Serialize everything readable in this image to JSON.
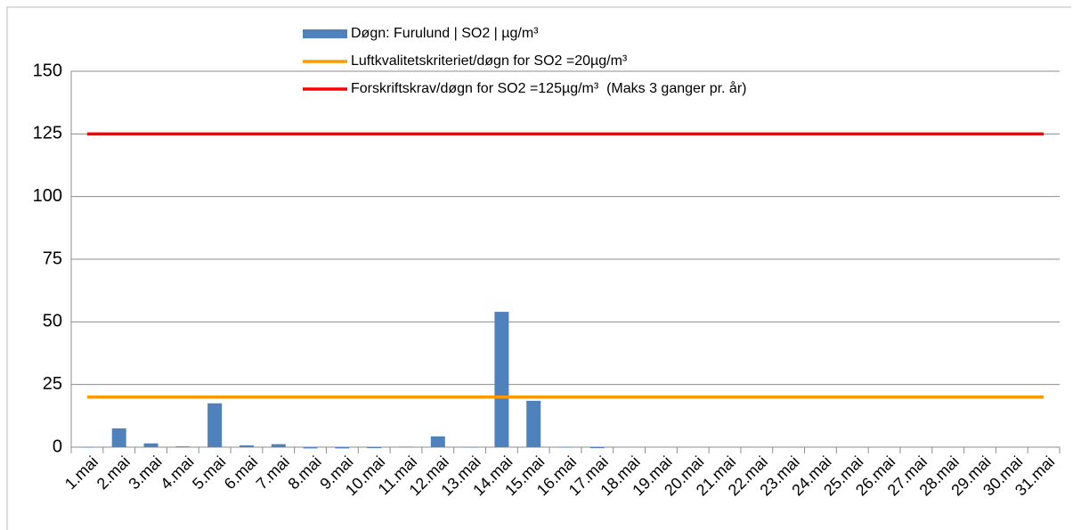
{
  "chart_data": {
    "type": "bar",
    "categories": [
      "1.mai",
      "2.mai",
      "3.mai",
      "4.mai",
      "5.mai",
      "6.mai",
      "7.mai",
      "8.mai",
      "9.mai",
      "10.mai",
      "11.mai",
      "12.mai",
      "13.mai",
      "14.mai",
      "15.mai",
      "16.mai",
      "17.mai",
      "18.mai",
      "19.mai",
      "20.mai",
      "21.mai",
      "22.mai",
      "23.mai",
      "24.mai",
      "25.mai",
      "26.mai",
      "27.mai",
      "28.mai",
      "29.mai",
      "30.mai",
      "31.mai"
    ],
    "series": [
      {
        "name": "Døgn: Furulund | SO2 | µg/m³",
        "type": "bar",
        "color": "#4f81bd",
        "values": [
          0,
          7.5,
          1.5,
          0.3,
          17.5,
          0.7,
          1.2,
          -0.5,
          -0.5,
          -0.4,
          0.2,
          4.3,
          0,
          54,
          18.5,
          0,
          -0.4,
          null,
          null,
          null,
          null,
          null,
          null,
          null,
          null,
          null,
          null,
          null,
          null,
          null,
          null
        ]
      },
      {
        "name": "Luftkvalitetskriteriet/døgn for SO2 =20µg/m³",
        "type": "line",
        "color": "#ff9900",
        "values": [
          20,
          20,
          20,
          20,
          20,
          20,
          20,
          20,
          20,
          20,
          20,
          20,
          20,
          20,
          20,
          20,
          20,
          20,
          20,
          20,
          20,
          20,
          20,
          20,
          20,
          20,
          20,
          20,
          20,
          20,
          20
        ]
      },
      {
        "name": "Forskriftskrav/døgn for SO2 =125µg/m³  (Maks 3 ganger pr. år)",
        "type": "line",
        "color": "#ff0000",
        "values": [
          125,
          125,
          125,
          125,
          125,
          125,
          125,
          125,
          125,
          125,
          125,
          125,
          125,
          125,
          125,
          125,
          125,
          125,
          125,
          125,
          125,
          125,
          125,
          125,
          125,
          125,
          125,
          125,
          125,
          125,
          125
        ]
      }
    ],
    "ylim": [
      0,
      150
    ],
    "yticks": [
      0,
      25,
      50,
      75,
      100,
      125,
      150
    ],
    "grid": true
  }
}
